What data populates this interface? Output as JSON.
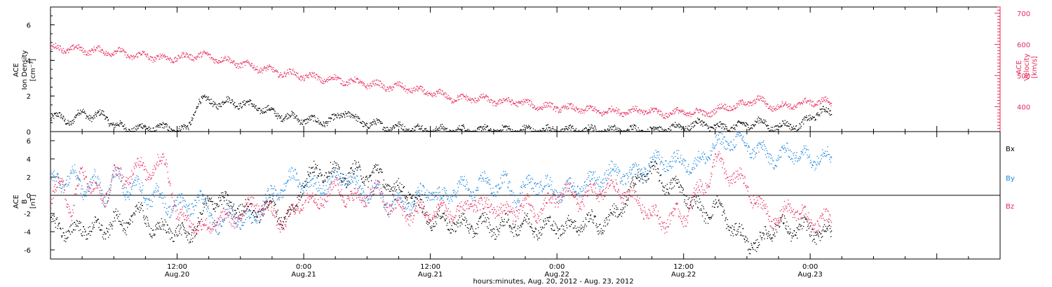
{
  "colors": {
    "density": "#000000",
    "velocity": "#e8295a",
    "bx": "#000000",
    "by": "#1a86e0",
    "bz": "#e8295a",
    "frame": "#000000"
  },
  "xaxis": {
    "label": "hours:minutes, Aug. 20, 2012 - Aug. 23, 2012",
    "range_hours": [
      0,
      90
    ],
    "ticks": [
      {
        "hour": 12,
        "line1": "12:00",
        "line2": "Aug.20"
      },
      {
        "hour": 24,
        "line1": "0:00",
        "line2": "Aug.21"
      },
      {
        "hour": 36,
        "line1": "12:00",
        "line2": "Aug.21"
      },
      {
        "hour": 48,
        "line1": "0:00",
        "line2": "Aug.22"
      },
      {
        "hour": 60,
        "line1": "12:00",
        "line2": "Aug.22"
      },
      {
        "hour": 72,
        "line1": "0:00",
        "line2": "Aug.23"
      }
    ]
  },
  "chart_data": [
    {
      "type": "scatter",
      "panel": "top",
      "left_axis": {
        "line1": "ACE",
        "line2": "Ion Density",
        "line3": "[cm⁻³]",
        "ylim": [
          0,
          7
        ],
        "ticks": [
          0,
          2,
          4,
          6
        ]
      },
      "right_axis": {
        "line1": "ACE",
        "line2": "Velocity",
        "line3": "[km/s]",
        "ylim": [
          320,
          720
        ],
        "ticks": [
          400,
          500,
          600,
          700
        ]
      },
      "series": [
        {
          "key": "density",
          "axis": "left",
          "x": [
            0,
            1,
            2,
            3,
            4,
            5,
            6,
            7,
            8,
            9,
            10,
            11,
            12,
            13,
            14,
            15,
            16,
            17,
            18,
            19,
            20,
            21,
            22,
            23,
            24,
            25,
            26,
            27,
            28,
            29,
            30,
            31,
            32,
            33,
            34,
            35,
            36,
            37,
            38,
            39,
            40,
            41,
            42,
            43,
            44,
            45,
            46,
            47,
            48,
            49,
            50,
            51,
            52,
            53,
            54,
            55,
            56,
            57,
            58,
            59,
            60,
            61,
            62,
            63,
            64,
            65,
            66,
            67,
            68,
            69,
            70,
            71,
            72,
            73,
            74
          ],
          "y": [
            0.7,
            0.9,
            0.5,
            1.2,
            0.8,
            1.0,
            0.4,
            0.2,
            0.2,
            0.2,
            0.25,
            0.2,
            0.15,
            0.15,
            1.8,
            1.7,
            1.6,
            1.7,
            1.6,
            1.5,
            1.3,
            1.1,
            0.9,
            0.8,
            0.7,
            0.6,
            0.6,
            0.7,
            1.2,
            0.6,
            0.5,
            0.4,
            0.3,
            0.25,
            0.2,
            0.15,
            0.1,
            0.1,
            0.1,
            0.1,
            0.1,
            0.1,
            0.1,
            0.1,
            0.1,
            0.1,
            0.1,
            0.1,
            0.1,
            0.1,
            0.1,
            0.1,
            0.1,
            0.1,
            0.1,
            0.1,
            0.1,
            0.1,
            0.15,
            0.2,
            0.3,
            0.4,
            0.5,
            0.2,
            0.3,
            0.3,
            0.4,
            0.6,
            0.3,
            0.3,
            0.4,
            0.3,
            0.8,
            1.2,
            1.0
          ]
        },
        {
          "key": "velocity",
          "axis": "right",
          "x": [
            0,
            1,
            2,
            3,
            4,
            5,
            6,
            7,
            8,
            9,
            10,
            11,
            12,
            13,
            14,
            15,
            16,
            17,
            18,
            19,
            20,
            21,
            22,
            23,
            24,
            25,
            26,
            27,
            28,
            29,
            30,
            31,
            32,
            33,
            34,
            35,
            36,
            37,
            38,
            39,
            40,
            41,
            42,
            43,
            44,
            45,
            46,
            47,
            48,
            49,
            50,
            51,
            52,
            53,
            54,
            55,
            56,
            57,
            58,
            59,
            60,
            61,
            62,
            63,
            64,
            65,
            66,
            67,
            68,
            69,
            70,
            71,
            72,
            73,
            74
          ],
          "y": [
            590,
            585,
            590,
            580,
            585,
            575,
            580,
            570,
            565,
            565,
            560,
            555,
            560,
            560,
            570,
            560,
            555,
            545,
            540,
            530,
            525,
            515,
            510,
            505,
            500,
            495,
            490,
            488,
            485,
            478,
            475,
            470,
            465,
            465,
            460,
            450,
            445,
            440,
            430,
            425,
            430,
            425,
            420,
            415,
            420,
            410,
            405,
            400,
            400,
            395,
            395,
            390,
            388,
            385,
            388,
            385,
            390,
            385,
            380,
            380,
            385,
            380,
            383,
            385,
            405,
            400,
            415,
            425,
            405,
            400,
            405,
            410,
            415,
            420,
            410
          ]
        }
      ]
    },
    {
      "type": "scatter",
      "panel": "bottom",
      "left_axis": {
        "line1": "ACE",
        "line2": "B",
        "line3": "[nT]",
        "ylim": [
          -7,
          7
        ],
        "ticks": [
          -6,
          -4,
          -2,
          0,
          2,
          4,
          6
        ]
      },
      "series": [
        {
          "name": "Bx",
          "key": "bx",
          "x": [
            0,
            1,
            2,
            3,
            4,
            5,
            6,
            7,
            8,
            9,
            10,
            11,
            12,
            13,
            14,
            15,
            16,
            17,
            18,
            19,
            20,
            21,
            22,
            23,
            24,
            25,
            26,
            27,
            28,
            29,
            30,
            31,
            32,
            33,
            34,
            35,
            36,
            37,
            38,
            39,
            40,
            41,
            42,
            43,
            44,
            45,
            46,
            47,
            48,
            49,
            50,
            51,
            52,
            53,
            54,
            55,
            56,
            57,
            58,
            59,
            60,
            61,
            62,
            63,
            64,
            65,
            66,
            67,
            68,
            69,
            70,
            71,
            72,
            73,
            74
          ],
          "y": [
            -3,
            -4,
            -3.5,
            -4,
            -3,
            -4.5,
            -2,
            -4,
            -1,
            -3,
            -3.5,
            -4,
            -3.5,
            -5,
            -2.5,
            -1,
            0,
            -1.5,
            -1,
            -2,
            -1.5,
            -1,
            -2.5,
            -2,
            2,
            2.5,
            2.8,
            2.5,
            2.2,
            2.6,
            2.2,
            2.5,
            1.2,
            0.5,
            0.4,
            -1.5,
            -2.5,
            -2.6,
            -3,
            -3.2,
            -3.4,
            -3,
            -3.5,
            -3.3,
            -3.2,
            -3.1,
            -3.5,
            -3.4,
            -3.3,
            -3.5,
            -3.1,
            -2.8,
            -3.2,
            -2.5,
            -1.5,
            0.5,
            2.5,
            2.8,
            1.5,
            1,
            0.5,
            -1,
            -2,
            -1,
            -2.5,
            -4,
            -5,
            -5.5,
            -4,
            -3,
            -4,
            -3.5,
            -3.8,
            -4.2,
            -4
          ]
        },
        {
          "name": "By",
          "key": "by",
          "x": [
            0,
            1,
            2,
            3,
            4,
            5,
            6,
            7,
            8,
            9,
            10,
            11,
            12,
            13,
            14,
            15,
            16,
            17,
            18,
            19,
            20,
            21,
            22,
            23,
            24,
            25,
            26,
            27,
            28,
            29,
            30,
            31,
            32,
            33,
            34,
            35,
            36,
            37,
            38,
            39,
            40,
            41,
            42,
            43,
            44,
            45,
            46,
            47,
            48,
            49,
            50,
            51,
            52,
            53,
            54,
            55,
            56,
            57,
            58,
            59,
            60,
            61,
            62,
            63,
            64,
            65,
            66,
            67,
            68,
            69,
            70,
            71,
            72,
            73,
            74
          ],
          "y": [
            2,
            1,
            3,
            0,
            2.5,
            -1,
            3,
            0,
            2,
            -1,
            1,
            -2,
            0,
            -2,
            0.5,
            -2.5,
            -3,
            -2,
            -2.5,
            -3,
            -1,
            0,
            1,
            2,
            1.5,
            1,
            1.2,
            1.8,
            2.5,
            1,
            0,
            0.5,
            -1,
            -0.5,
            -1,
            0,
            0.5,
            -0.5,
            0.5,
            1,
            0.5,
            1.5,
            1,
            1.5,
            0,
            1,
            1.5,
            1,
            0.5,
            0.5,
            1,
            1.5,
            2,
            2.5,
            2.5,
            2,
            3,
            3.5,
            4,
            3.5,
            4,
            3,
            4.5,
            5.5,
            6,
            6,
            5.5,
            5,
            4.5,
            4,
            5,
            4.5,
            4,
            4.5,
            4
          ]
        },
        {
          "name": "Bz",
          "key": "bz",
          "x": [
            0,
            1,
            2,
            3,
            4,
            5,
            6,
            7,
            8,
            9,
            10,
            11,
            12,
            13,
            14,
            15,
            16,
            17,
            18,
            19,
            20,
            21,
            22,
            23,
            24,
            25,
            26,
            27,
            28,
            29,
            30,
            31,
            32,
            33,
            34,
            35,
            36,
            37,
            38,
            39,
            40,
            41,
            42,
            43,
            44,
            45,
            46,
            47,
            48,
            49,
            50,
            51,
            52,
            53,
            54,
            55,
            56,
            57,
            58,
            59,
            60,
            61,
            62,
            63,
            64,
            65,
            66,
            67,
            68,
            69,
            70,
            71,
            72,
            73,
            74
          ],
          "y": [
            -1,
            2,
            -2,
            3,
            1,
            -1,
            3,
            1,
            4,
            2,
            4,
            3,
            -2,
            -3,
            -3,
            -4,
            -2,
            -3,
            -2,
            -1,
            -1,
            -2,
            -3,
            -2,
            0,
            -1,
            0,
            1,
            0,
            -0.5,
            0.2,
            0.5,
            -1,
            -1.5,
            -2,
            -1.8,
            -2,
            -1.5,
            -1.8,
            -2,
            -0.5,
            -1.5,
            -1,
            -2,
            -1.5,
            -1,
            -2,
            -1,
            0,
            0.5,
            -0.5,
            0,
            0.5,
            1,
            0.5,
            0,
            -1,
            -2,
            -3,
            -2,
            -2.5,
            0,
            1,
            4,
            2.5,
            2,
            1,
            -1,
            -2,
            -3,
            -1,
            -2,
            -3,
            -2.5,
            -3
          ]
        }
      ]
    }
  ]
}
